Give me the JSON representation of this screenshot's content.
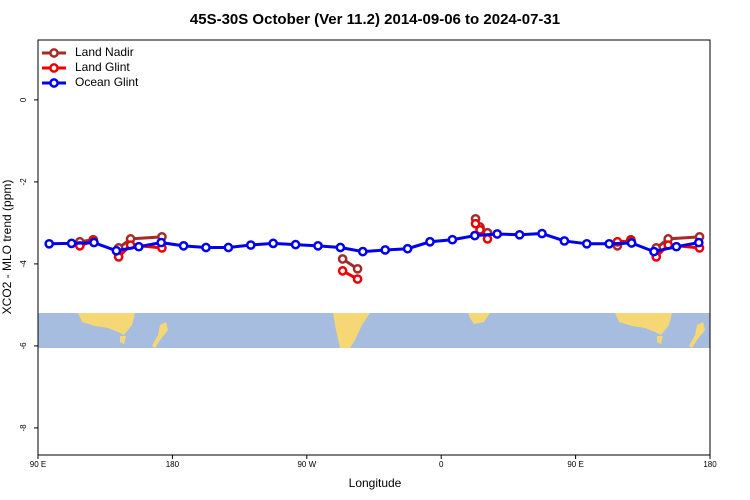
{
  "chart_data": {
    "type": "line",
    "title": "45S-30S October (Ver 11.2)   2014-09-06 to 2024-07-31",
    "x_label": "Longitude",
    "y_label": "XCO2 - MLO trend (ppm)",
    "xlim": [
      90,
      540
    ],
    "xticks": [
      {
        "value": 90,
        "label": "90 E"
      },
      180,
      {
        "value": 270,
        "label": "90 W"
      },
      {
        "value": 360,
        "label": "0"
      },
      {
        "value": 450,
        "label": "90 E"
      },
      {
        "value": 540,
        "label": "180"
      }
    ],
    "ylim": [
      -8.66,
      1.46
    ],
    "yticks": [
      0,
      -2,
      -4,
      -6,
      -8
    ],
    "legend": "top-left",
    "series": [
      {
        "name": "Land Nadir",
        "color": "#a52a2a",
        "x": [
          118,
          127,
          null,
          144,
          152,
          173,
          null,
          294,
          304,
          null,
          383,
          386,
          391,
          null,
          478,
          487,
          null,
          504,
          512,
          533
        ],
        "values": [
          -3.46,
          -3.41,
          null,
          -3.61,
          -3.39,
          -3.34,
          null,
          -3.88,
          -4.12,
          null,
          -2.9,
          -3.1,
          -3.24,
          null,
          -3.56,
          -3.41,
          null,
          -3.61,
          -3.39,
          -3.34
        ]
      },
      {
        "name": "Land Glint",
        "color": "#ee0000",
        "x": [
          118,
          127,
          null,
          144,
          152,
          173,
          null,
          294,
          304,
          null,
          383,
          386,
          391,
          null,
          478,
          487,
          null,
          504,
          512,
          533
        ],
        "values": [
          -3.56,
          -3.44,
          null,
          -3.83,
          -3.54,
          -3.61,
          null,
          -4.17,
          -4.37,
          null,
          -3.02,
          -3.17,
          -3.39,
          null,
          -3.46,
          -3.44,
          null,
          -3.83,
          -3.54,
          -3.61
        ]
      },
      {
        "name": "Ocean Glint",
        "color": "#0000ee",
        "x": [
          97.5,
          112.5,
          127.5,
          142.5,
          157.5,
          172.5,
          187.5,
          202.5,
          217.5,
          232.5,
          247.5,
          262.5,
          277.5,
          292.5,
          307.5,
          322.5,
          337.5,
          352.5,
          367.5,
          382.5,
          397.5,
          412.5,
          427.5,
          442.5,
          457.5,
          472.5,
          487.5,
          502.5,
          517.5,
          532.5
        ],
        "values": [
          -3.51,
          -3.5,
          -3.48,
          -3.68,
          -3.58,
          -3.48,
          -3.56,
          -3.6,
          -3.6,
          -3.54,
          -3.5,
          -3.53,
          -3.56,
          -3.6,
          -3.7,
          -3.66,
          -3.63,
          -3.46,
          -3.41,
          -3.31,
          -3.27,
          -3.29,
          -3.26,
          -3.44,
          -3.51,
          -3.51,
          -3.49,
          -3.7,
          -3.58,
          -3.48
        ]
      }
    ]
  }
}
